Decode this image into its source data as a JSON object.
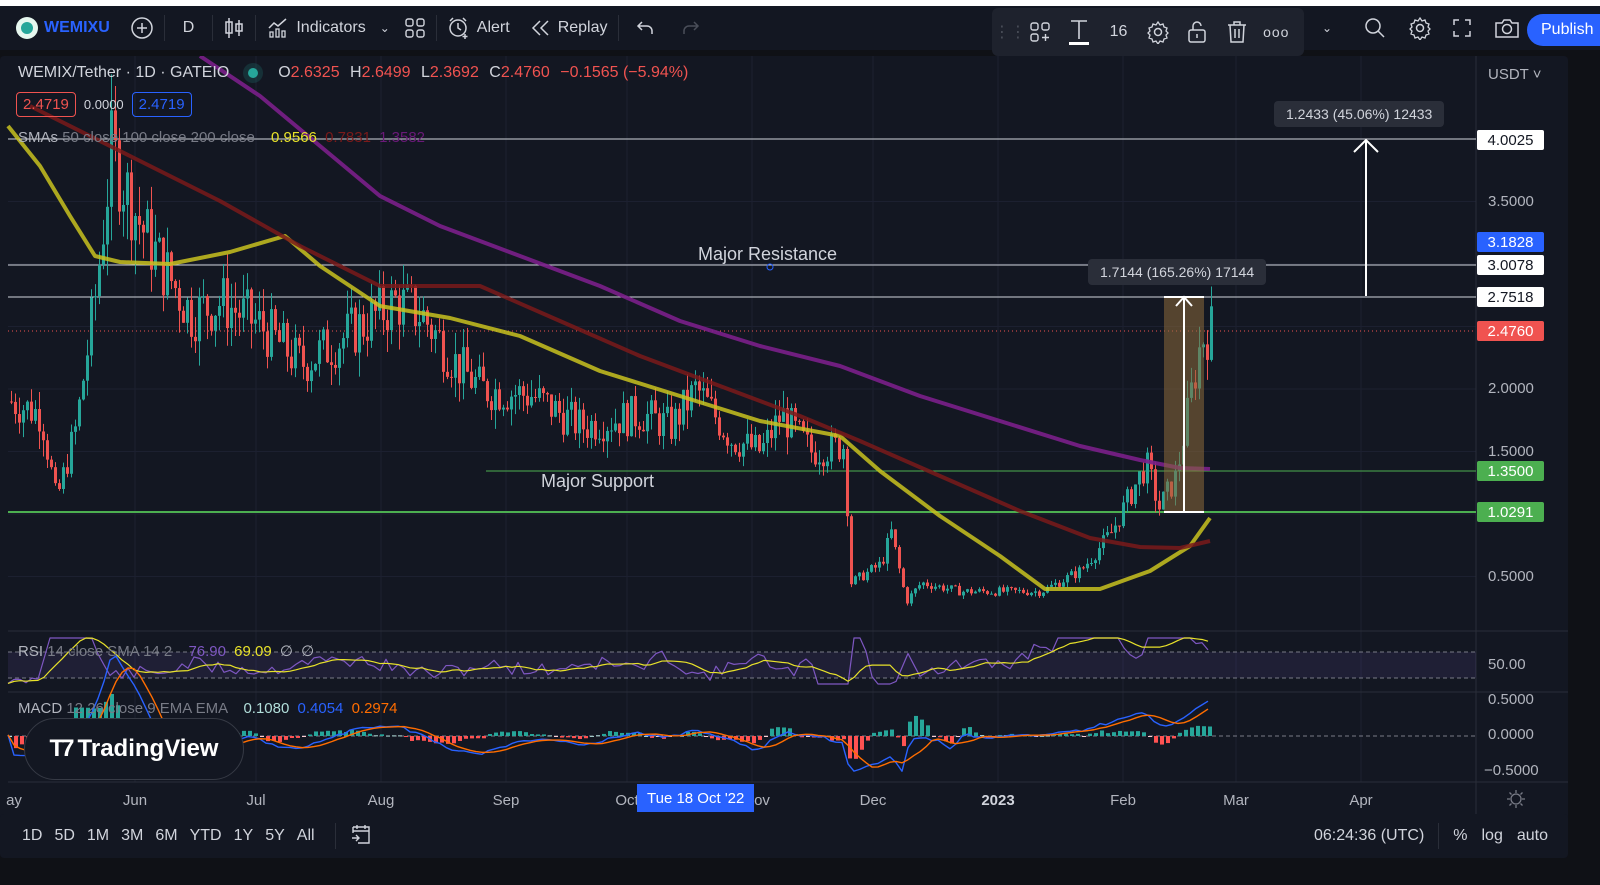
{
  "toolbar": {
    "symbol": "WEMIXU",
    "interval": "D",
    "indicators_label": "Indicators",
    "alert_label": "Alert",
    "replay_label": "Replay",
    "publish_label": "Publish",
    "text_size": "16"
  },
  "legend": {
    "title": "WEMIX/Tether · 1D · GATEIO",
    "open_key": "O",
    "open": "2.6325",
    "high_key": "H",
    "high": "2.6499",
    "low_key": "L",
    "low": "2.3692",
    "close_key": "C",
    "close": "2.4760",
    "change": "−0.1565 (−5.94%)",
    "bid": "2.4719",
    "spread": "0.0000",
    "ask": "2.4719"
  },
  "sma_legend": {
    "name": "SMAs",
    "params": "50 close 100 close 200 close",
    "sma50": "0.9566",
    "sma100": "0.7831",
    "sma200": "1.3582"
  },
  "rsi_legend": {
    "name": "RSI",
    "params": "14 close SMA 14 2",
    "rsi": "76.90",
    "sma": "69.09",
    "extra1": "∅",
    "extra2": "∅"
  },
  "macd_legend": {
    "name": "MACD",
    "params": "12 26 close 9 EMA EMA",
    "hist": "0.1080",
    "macd": "0.4054",
    "signal": "0.2974"
  },
  "price_axis": {
    "currency": "USDT",
    "ticks": [
      "3.5000",
      "2.0000",
      "1.5000",
      "0.5000"
    ],
    "tags": [
      {
        "value": "4.0025",
        "kind": "line"
      },
      {
        "value": "3.1828",
        "kind": "crosshair"
      },
      {
        "value": "3.0078",
        "kind": "line"
      },
      {
        "value": "2.7518",
        "kind": "line"
      },
      {
        "value": "2.4760",
        "kind": "last"
      },
      {
        "value": "1.3500",
        "kind": "support"
      },
      {
        "value": "1.0291",
        "kind": "support"
      }
    ],
    "rsi_tick": "50.00",
    "macd_ticks": [
      "0.5000",
      "0.0000",
      "−0.5000"
    ]
  },
  "annotations": {
    "resistance_label": "Major Resistance",
    "support_label": "Major Support",
    "measure_upper": "1.2433 (45.06%) 12433",
    "measure_lower": "1.7144 (165.26%) 17144"
  },
  "time_axis": {
    "labels": [
      "ay",
      "Jun",
      "Jul",
      "Aug",
      "Sep",
      "Oct",
      "ov",
      "Dec",
      "2023",
      "Feb",
      "Mar",
      "Apr"
    ],
    "crosshair": "Tue 18 Oct '22"
  },
  "bottom_bar": {
    "ranges": [
      "1D",
      "5D",
      "1M",
      "3M",
      "6M",
      "YTD",
      "1Y",
      "5Y",
      "All"
    ],
    "clock": "06:24:36 (UTC)",
    "percent": "%",
    "log": "log",
    "auto": "auto"
  },
  "branding": "TradingView",
  "colors": {
    "up": "#26a69a",
    "down": "#ef5350",
    "sma50": "#c9c21f",
    "sma100": "#7a1a1a",
    "sma200": "#7b1f8a",
    "accent": "#2962ff",
    "support": "#4caf50"
  },
  "chart_data": {
    "type": "candlestick",
    "title": "WEMIX/Tether · 1D · GATEIO",
    "x_range": [
      "2022-05",
      "2023-04"
    ],
    "y_range": [
      0.2,
      4.3
    ],
    "horizontal_levels": [
      4.0025,
      3.0078,
      2.7518,
      1.35,
      1.0291
    ],
    "last_price": 2.476,
    "ohlc_last": {
      "open": 2.6325,
      "high": 2.6499,
      "low": 2.3692,
      "close": 2.476
    },
    "monthly_close_approx": {
      "May": 1.8,
      "Jun": 3.0,
      "Jul": 2.7,
      "Aug": 2.6,
      "Sep": 1.9,
      "Oct": 1.7,
      "Nov": 1.55,
      "Dec": 0.35,
      "Jan": 0.45,
      "Feb": 1.3,
      "Feb-end": 2.48
    },
    "indicators": {
      "SMA50": 0.9566,
      "SMA100": 0.7831,
      "SMA200": 1.3582,
      "RSI14": 76.9,
      "RSI_SMA": 69.09,
      "MACD_hist": 0.108,
      "MACD": 0.4054,
      "MACD_signal": 0.2974
    }
  }
}
